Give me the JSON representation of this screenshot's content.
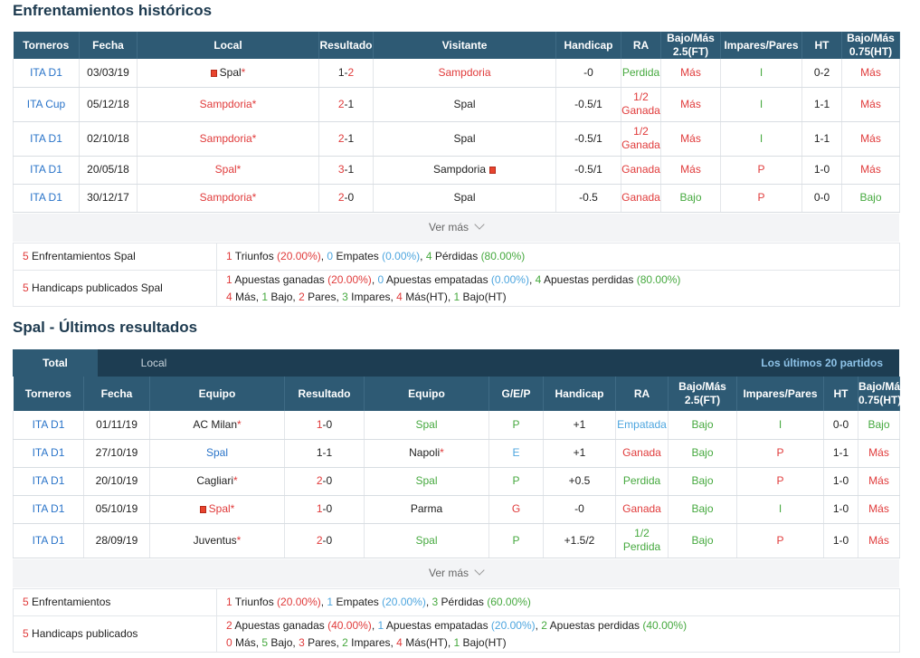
{
  "h2h": {
    "title": "Enfrentamientos históricos",
    "headers": [
      "Torneros",
      "Fecha",
      "Local",
      "Resultado",
      "Visitante",
      "Handicap",
      "RA",
      "Bajo/Más 2.5(FT)",
      "Impares/Pares",
      "HT",
      "Bajo/Más 0.75(HT)"
    ],
    "rows": [
      {
        "league": "ITA D1",
        "date": "03/03/19",
        "home": "Spal",
        "home_color": "dark",
        "home_flag": true,
        "home_ast": true,
        "score_h": "1",
        "score_h_color": "dark",
        "score_a": "2",
        "score_a_color": "red",
        "away": "Sampdoria",
        "away_color": "red",
        "away_flag": false,
        "away_ast": false,
        "handicap": "-0",
        "ra1": "Perdida",
        "ra2": "",
        "ra_color": "grn",
        "ou": "Más",
        "ou_color": "red",
        "oe": "I",
        "oe_color": "grn",
        "ht": "0-2",
        "ht_ou": "Más",
        "ht_ou_color": "red"
      },
      {
        "league": "ITA Cup",
        "date": "05/12/18",
        "home": "Sampdoria",
        "home_color": "red",
        "home_flag": false,
        "home_ast": true,
        "score_h": "2",
        "score_h_color": "red",
        "score_a": "1",
        "score_a_color": "dark",
        "away": "Spal",
        "away_color": "dark",
        "away_flag": false,
        "away_ast": false,
        "handicap": "-0.5/1",
        "ra1": "1/2",
        "ra2": "Ganada",
        "ra_color": "red",
        "ou": "Más",
        "ou_color": "red",
        "oe": "I",
        "oe_color": "grn",
        "ht": "1-1",
        "ht_ou": "Más",
        "ht_ou_color": "red"
      },
      {
        "league": "ITA D1",
        "date": "02/10/18",
        "home": "Sampdoria",
        "home_color": "red",
        "home_flag": false,
        "home_ast": true,
        "score_h": "2",
        "score_h_color": "red",
        "score_a": "1",
        "score_a_color": "dark",
        "away": "Spal",
        "away_color": "dark",
        "away_flag": false,
        "away_ast": false,
        "handicap": "-0.5/1",
        "ra1": "1/2",
        "ra2": "Ganada",
        "ra_color": "red",
        "ou": "Más",
        "ou_color": "red",
        "oe": "I",
        "oe_color": "grn",
        "ht": "1-1",
        "ht_ou": "Más",
        "ht_ou_color": "red"
      },
      {
        "league": "ITA D1",
        "date": "20/05/18",
        "home": "Spal",
        "home_color": "red",
        "home_flag": false,
        "home_ast": true,
        "score_h": "3",
        "score_h_color": "red",
        "score_a": "1",
        "score_a_color": "dark",
        "away": "Sampdoria",
        "away_color": "dark",
        "away_flag": true,
        "away_ast": false,
        "handicap": "-0.5/1",
        "ra1": "Ganada",
        "ra2": "",
        "ra_color": "red",
        "ou": "Más",
        "ou_color": "red",
        "oe": "P",
        "oe_color": "red",
        "ht": "1-0",
        "ht_ou": "Más",
        "ht_ou_color": "red"
      },
      {
        "league": "ITA D1",
        "date": "30/12/17",
        "home": "Sampdoria",
        "home_color": "red",
        "home_flag": false,
        "home_ast": true,
        "score_h": "2",
        "score_h_color": "red",
        "score_a": "0",
        "score_a_color": "dark",
        "away": "Spal",
        "away_color": "dark",
        "away_flag": false,
        "away_ast": false,
        "handicap": "-0.5",
        "ra1": "Ganada",
        "ra2": "",
        "ra_color": "red",
        "ou": "Bajo",
        "ou_color": "grn",
        "oe": "P",
        "oe_color": "red",
        "ht": "0-0",
        "ht_ou": "Bajo",
        "ht_ou_color": "grn"
      }
    ],
    "more_label": "Ver más",
    "summary1": {
      "num": "5",
      "label": " Enfrentamientos Spal",
      "w": "1",
      "w_lbl": " Triunfos ",
      "w_pct": "(20.00%)",
      "d": "0",
      "d_lbl": " Empates ",
      "d_pct": "(0.00%)",
      "l": "4",
      "l_lbl": " Pérdidas ",
      "l_pct": "(80.00%)"
    },
    "summary2": {
      "num": "5",
      "label": " Handicaps publicados Spal",
      "w": "1",
      "w_lbl": " Apuestas ganadas ",
      "w_pct": "(20.00%)",
      "d": "0",
      "d_lbl": " Apuestas empatadas ",
      "d_pct": "(0.00%)",
      "l": "4",
      "l_lbl": " Apuestas perdidas ",
      "l_pct": "(80.00%)",
      "l2_a": "4",
      "l2_a_lbl": " Más, ",
      "l2_b": "1",
      "l2_b_lbl": " Bajo, ",
      "l2_c": "2",
      "l2_c_lbl": " Pares, ",
      "l2_d": "3",
      "l2_d_lbl": " Impares, ",
      "l2_e": "4",
      "l2_e_lbl": " Más(HT), ",
      "l2_f": "1",
      "l2_f_lbl": " Bajo(HT)"
    }
  },
  "recent": {
    "title": "Spal - Últimos resultados",
    "tab_total": "Total",
    "tab_local": "Local",
    "tab_right": "Los últimos 20 partidos",
    "headers": [
      "Torneros",
      "Fecha",
      "Equipo",
      "Resultado",
      "Equipo",
      "G/E/P",
      "Handicap",
      "RA",
      "Bajo/Más 2.5(FT)",
      "Impares/Pares",
      "HT",
      "Bajo/Más 0.75(HT)"
    ],
    "rows": [
      {
        "league": "ITA D1",
        "date": "01/11/19",
        "home": "AC Milan",
        "home_color": "dark",
        "home_flag": false,
        "home_ast": true,
        "score_h": "1",
        "score_h_color": "red",
        "score_a": "0",
        "score_a_color": "dark",
        "away": "Spal",
        "away_color": "grn",
        "away_ast": false,
        "gep": "P",
        "gep_color": "grn",
        "handicap": "+1",
        "ra1": "Empatada",
        "ra2": "",
        "ra_color": "blu",
        "ou": "Bajo",
        "ou_color": "grn",
        "oe": "I",
        "oe_color": "grn",
        "ht": "0-0",
        "ht_ou": "Bajo",
        "ht_ou_color": "grn"
      },
      {
        "league": "ITA D1",
        "date": "27/10/19",
        "home": "Spal",
        "home_color": "lnk",
        "home_flag": false,
        "home_ast": false,
        "score_h": "1",
        "score_h_color": "dark",
        "score_a": "1",
        "score_a_color": "dark",
        "away": "Napoli",
        "away_color": "dark",
        "away_ast": true,
        "gep": "E",
        "gep_color": "blu",
        "handicap": "+1",
        "ra1": "Ganada",
        "ra2": "",
        "ra_color": "red",
        "ou": "Bajo",
        "ou_color": "grn",
        "oe": "P",
        "oe_color": "red",
        "ht": "1-1",
        "ht_ou": "Más",
        "ht_ou_color": "red"
      },
      {
        "league": "ITA D1",
        "date": "20/10/19",
        "home": "Cagliari",
        "home_color": "dark",
        "home_flag": false,
        "home_ast": true,
        "score_h": "2",
        "score_h_color": "red",
        "score_a": "0",
        "score_a_color": "dark",
        "away": "Spal",
        "away_color": "grn",
        "away_ast": false,
        "gep": "P",
        "gep_color": "grn",
        "handicap": "+0.5",
        "ra1": "Perdida",
        "ra2": "",
        "ra_color": "grn",
        "ou": "Bajo",
        "ou_color": "grn",
        "oe": "P",
        "oe_color": "red",
        "ht": "1-0",
        "ht_ou": "Más",
        "ht_ou_color": "red"
      },
      {
        "league": "ITA D1",
        "date": "05/10/19",
        "home": "Spal",
        "home_color": "red",
        "home_flag": true,
        "home_ast": true,
        "score_h": "1",
        "score_h_color": "red",
        "score_a": "0",
        "score_a_color": "dark",
        "away": "Parma",
        "away_color": "dark",
        "away_ast": false,
        "gep": "G",
        "gep_color": "red",
        "handicap": "-0",
        "ra1": "Ganada",
        "ra2": "",
        "ra_color": "red",
        "ou": "Bajo",
        "ou_color": "grn",
        "oe": "I",
        "oe_color": "grn",
        "ht": "1-0",
        "ht_ou": "Más",
        "ht_ou_color": "red"
      },
      {
        "league": "ITA D1",
        "date": "28/09/19",
        "home": "Juventus",
        "home_color": "dark",
        "home_flag": false,
        "home_ast": true,
        "score_h": "2",
        "score_h_color": "red",
        "score_a": "0",
        "score_a_color": "dark",
        "away": "Spal",
        "away_color": "grn",
        "away_ast": false,
        "gep": "P",
        "gep_color": "grn",
        "handicap": "+1.5/2",
        "ra1": "1/2",
        "ra2": "Perdida",
        "ra_color": "grn",
        "ou": "Bajo",
        "ou_color": "grn",
        "oe": "P",
        "oe_color": "red",
        "ht": "1-0",
        "ht_ou": "Más",
        "ht_ou_color": "red"
      }
    ],
    "more_label": "Ver más",
    "summary1": {
      "num": "5",
      "label": " Enfrentamientos",
      "w": "1",
      "w_lbl": " Triunfos ",
      "w_pct": "(20.00%)",
      "d": "1",
      "d_lbl": " Empates ",
      "d_pct": "(20.00%)",
      "l": "3",
      "l_lbl": " Pérdidas ",
      "l_pct": "(60.00%)"
    },
    "summary2": {
      "num": "5",
      "label": " Handicaps publicados",
      "w": "2",
      "w_lbl": " Apuestas ganadas ",
      "w_pct": "(40.00%)",
      "d": "1",
      "d_lbl": " Apuestas empatadas ",
      "d_pct": "(20.00%)",
      "l": "2",
      "l_lbl": " Apuestas perdidas ",
      "l_pct": "(40.00%)",
      "l2_a": "0",
      "l2_a_lbl": " Más, ",
      "l2_b": "5",
      "l2_b_lbl": " Bajo, ",
      "l2_c": "3",
      "l2_c_lbl": " Pares, ",
      "l2_d": "2",
      "l2_d_lbl": " Impares, ",
      "l2_e": "4",
      "l2_e_lbl": " Más(HT), ",
      "l2_f": "1",
      "l2_f_lbl": " Bajo(HT)"
    }
  },
  "colors": {
    "header": "#2e5a74",
    "tabbar": "#1d3d52",
    "red": "#e03b3b",
    "green": "#46a93f",
    "blue": "#4ea6df",
    "link": "#2a74c9"
  }
}
